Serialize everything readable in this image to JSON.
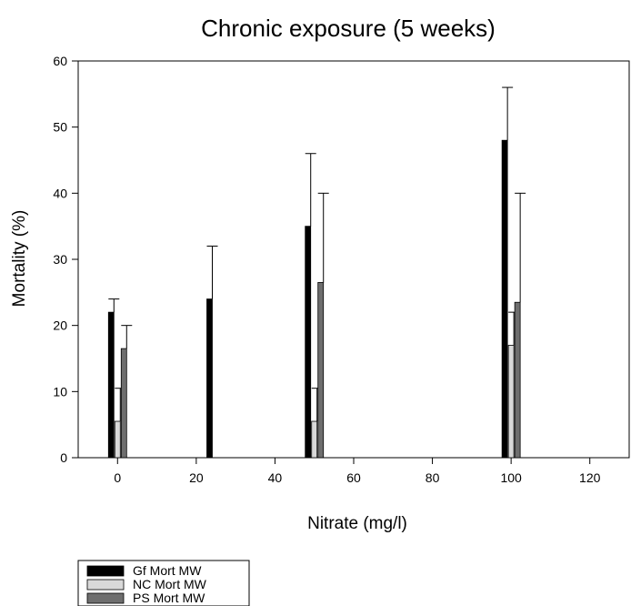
{
  "chart_data": {
    "type": "bar",
    "title": "Chronic exposure (5 weeks)",
    "xlabel": "Nitrate (mg/l)",
    "ylabel": "Mortality (%)",
    "xlim": [
      -10,
      130
    ],
    "ylim": [
      0,
      60
    ],
    "x_ticks": [
      0,
      20,
      40,
      60,
      80,
      100,
      120
    ],
    "y_ticks": [
      0,
      10,
      20,
      30,
      40,
      50,
      60
    ],
    "grid": false,
    "legend_position": "bottom-left",
    "x": [
      0,
      25,
      50,
      100
    ],
    "series": [
      {
        "name": "Gf Mort  MW",
        "color": "#000000",
        "values": [
          22,
          24,
          35,
          48
        ],
        "errors": [
          2,
          8,
          11,
          8
        ]
      },
      {
        "name": "NC Mort MW",
        "color": "#d9d9d9",
        "values": [
          5.5,
          null,
          5.5,
          17
        ],
        "errors": [
          5,
          null,
          5,
          5
        ]
      },
      {
        "name": "PS Mort MW",
        "color": "#6e6e6e",
        "values": [
          16.5,
          null,
          26.5,
          23.5
        ],
        "errors": [
          3.5,
          null,
          13.5,
          16.5
        ]
      }
    ]
  }
}
